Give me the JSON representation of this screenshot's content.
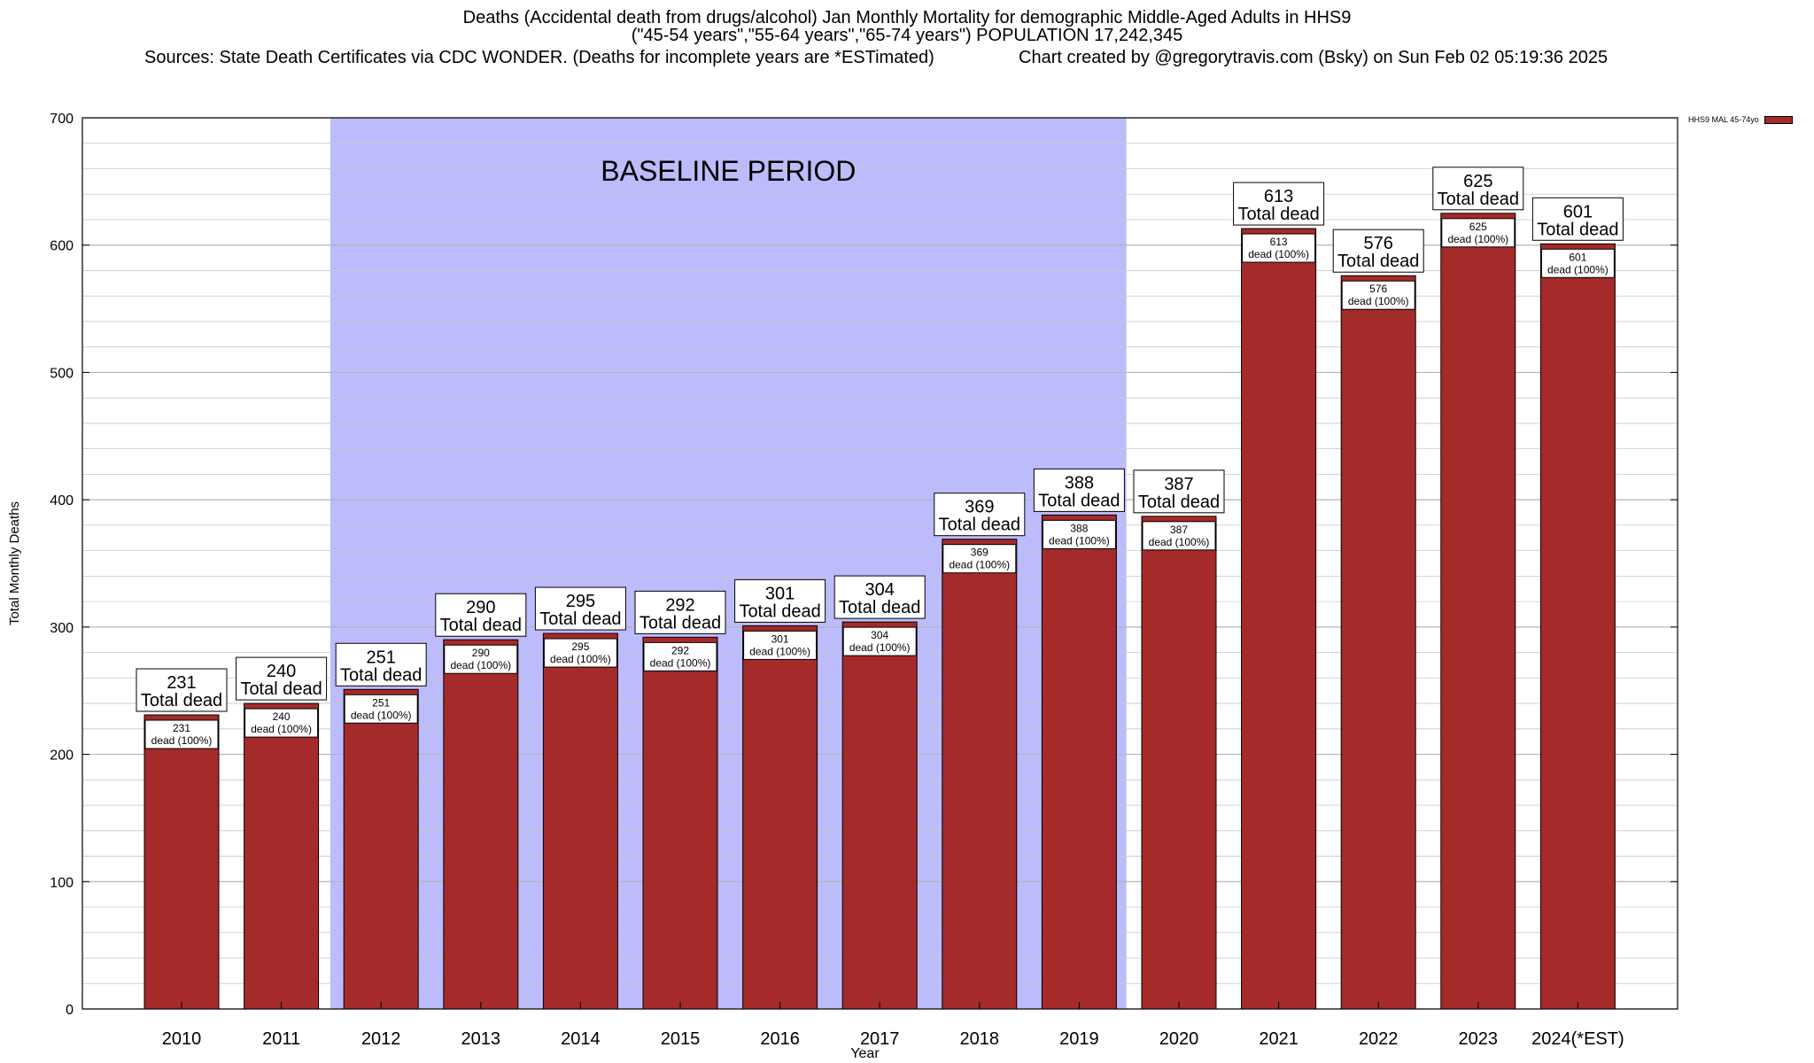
{
  "title": {
    "line1": "Deaths (Accidental death from drugs/alcohol) Jan Monthly Mortality for demographic Middle-Aged Adults in HHS9",
    "line2": "(\"45-54 years\",\"55-64 years\",\"65-74 years\") POPULATION 17,242,345",
    "sources": "Sources: State Death Certificates via CDC WONDER. (Deaths for incomplete years are *ESTimated)",
    "credit": "Chart created by @gregorytravis.com (Bsky) on Sun Feb 02 05:19:36 2025"
  },
  "legend": {
    "label": "HHS9 MAL 45-74yo"
  },
  "colors": {
    "bar": "#a52a2a",
    "baseline": "#bcbcfc",
    "grid": "#c8c8c8"
  },
  "chart_data": {
    "type": "bar",
    "title": "Deaths (Accidental death from drugs/alcohol) Jan Monthly Mortality for demographic Middle-Aged Adults in HHS9",
    "xlabel": "Year",
    "ylabel": "Total Monthly Deaths",
    "ylim": [
      0,
      700
    ],
    "yticks": [
      0,
      100,
      200,
      300,
      400,
      500,
      600,
      700
    ],
    "grid": true,
    "legend_position": "top-right",
    "categories": [
      "2010",
      "2011",
      "2012",
      "2013",
      "2014",
      "2015",
      "2016",
      "2017",
      "2018",
      "2019",
      "2020",
      "2021",
      "2022",
      "2023",
      "2024(*EST)"
    ],
    "series": [
      {
        "name": "HHS9 MAL 45-74yo",
        "values": [
          231,
          240,
          251,
          290,
          295,
          292,
          301,
          304,
          369,
          388,
          387,
          613,
          576,
          625,
          601
        ]
      }
    ],
    "top_label_text": "Total dead",
    "inner_label_text": "dead (100%)",
    "baseline_period": {
      "label": "BASELINE PERIOD",
      "from": "2012",
      "to": "2019"
    }
  }
}
